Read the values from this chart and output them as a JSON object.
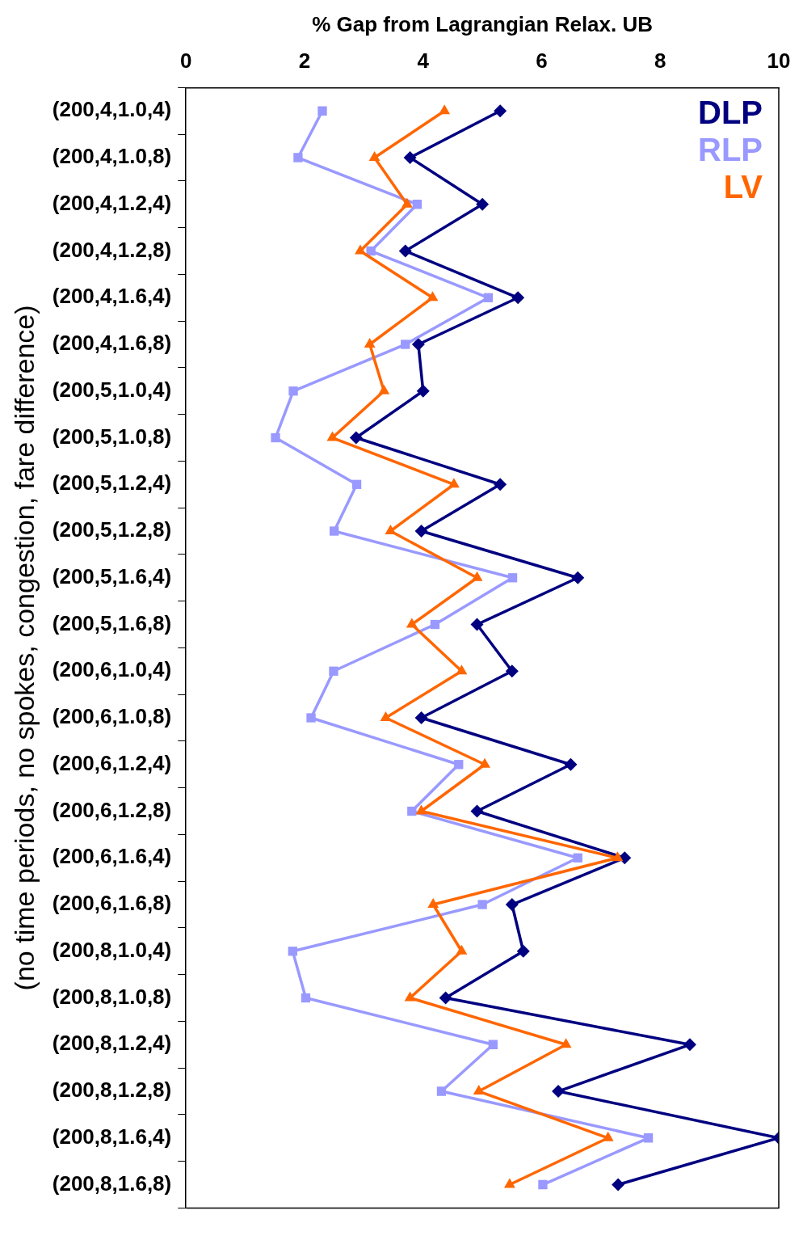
{
  "chart_data": {
    "type": "line",
    "orientation": "horizontal",
    "xlabel": "% Gap from Lagrangian Relax. UB",
    "ylabel": "(no time periods, no spokes, congestion, fare difference)",
    "categories": [
      "(200,4,1.0,4)",
      "(200,4,1.0,8)",
      "(200,4,1.2,4)",
      "(200,4,1.2,8)",
      "(200,4,1.6,4)",
      "(200,4,1.6,8)",
      "(200,5,1.0,4)",
      "(200,5,1.0,8)",
      "(200,5,1.2,4)",
      "(200,5,1.2,8)",
      "(200,5,1.6,4)",
      "(200,5,1.6,8)",
      "(200,6,1.0,4)",
      "(200,6,1.0,8)",
      "(200,6,1.2,4)",
      "(200,6,1.2,8)",
      "(200,6,1.6,4)",
      "(200,6,1.6,8)",
      "(200,8,1.0,4)",
      "(200,8,1.0,8)",
      "(200,8,1.2,4)",
      "(200,8,1.2,8)",
      "(200,8,1.6,4)",
      "(200,8,1.6,8)"
    ],
    "xlim": [
      0,
      10
    ],
    "xticks": [
      0,
      2,
      4,
      6,
      8,
      10
    ],
    "grid": false,
    "legend": "top right",
    "series": [
      {
        "name": "DLP",
        "color": "#000080",
        "marker": "diamond",
        "values": [
          5.3,
          3.78,
          5.0,
          3.7,
          5.6,
          3.92,
          4.0,
          2.87,
          5.3,
          3.97,
          6.61,
          4.91,
          5.5,
          3.97,
          6.49,
          4.91,
          7.4,
          5.5,
          5.69,
          4.38,
          8.5,
          6.28,
          10.0,
          7.29
        ]
      },
      {
        "name": "RLP",
        "color": "#9999ff",
        "marker": "square",
        "values": [
          2.3,
          1.89,
          3.9,
          3.12,
          5.1,
          3.7,
          1.81,
          1.51,
          2.88,
          2.5,
          5.51,
          4.2,
          2.49,
          2.11,
          4.6,
          3.81,
          6.61,
          5.0,
          1.8,
          2.02,
          5.18,
          4.31,
          7.8,
          6.02
        ]
      },
      {
        "name": "LV",
        "color": "#ff6600",
        "marker": "triangle",
        "values": [
          4.36,
          3.18,
          3.73,
          2.94,
          4.16,
          3.1,
          3.34,
          2.47,
          4.52,
          3.45,
          4.91,
          3.81,
          4.65,
          3.37,
          5.04,
          3.97,
          7.28,
          4.17,
          4.65,
          3.78,
          6.41,
          4.94,
          7.12,
          5.46
        ]
      }
    ]
  }
}
